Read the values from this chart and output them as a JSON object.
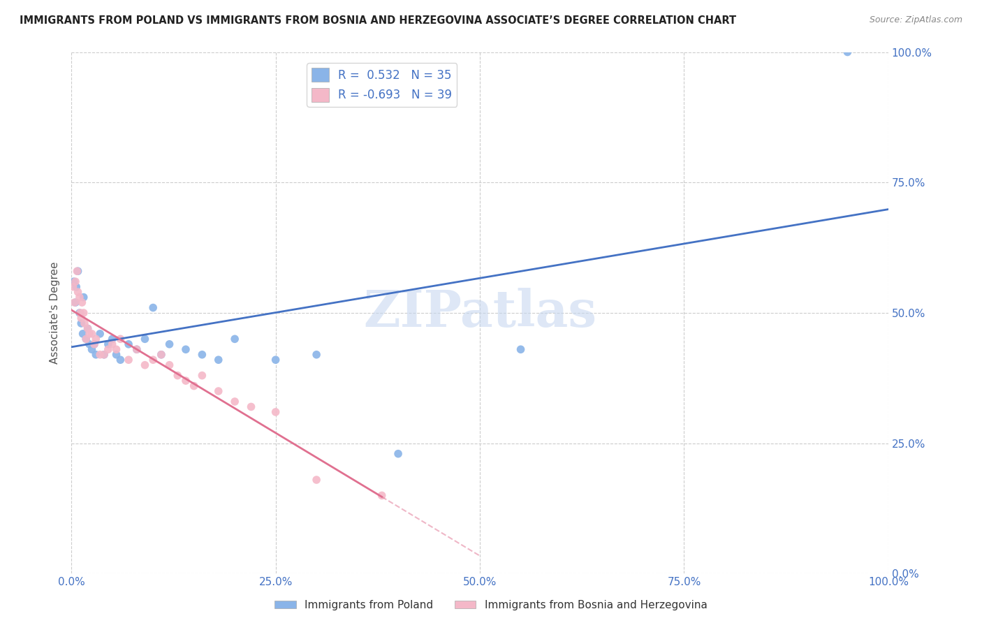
{
  "title": "IMMIGRANTS FROM POLAND VS IMMIGRANTS FROM BOSNIA AND HERZEGOVINA ASSOCIATE’S DEGREE CORRELATION CHART",
  "source": "Source: ZipAtlas.com",
  "ylabel": "Associate's Degree",
  "poland_R": 0.532,
  "poland_N": 35,
  "bosnia_R": -0.693,
  "bosnia_N": 39,
  "poland_color": "#8ab4e8",
  "bosnia_color": "#f4b8c8",
  "poland_line_color": "#4472c4",
  "bosnia_line_color": "#e07090",
  "watermark_text": "ZIPatlas",
  "watermark_color": "#c8d8f0",
  "background_color": "#ffffff",
  "grid_color": "#cccccc",
  "tick_color": "#4472c4",
  "title_color": "#222222",
  "legend_edge_color": "#cccccc",
  "xlim": [
    0,
    100
  ],
  "ylim": [
    0,
    100
  ],
  "x_ticks": [
    0,
    25,
    50,
    75,
    100
  ],
  "y_ticks": [
    0,
    25,
    50,
    75,
    100
  ],
  "poland_x": [
    0.3,
    0.5,
    0.6,
    0.8,
    1.0,
    1.2,
    1.4,
    1.5,
    1.8,
    2.0,
    2.2,
    2.5,
    2.8,
    3.0,
    3.5,
    4.0,
    4.5,
    5.0,
    5.5,
    6.0,
    7.0,
    8.0,
    9.0,
    10.0,
    11.0,
    12.0,
    14.0,
    16.0,
    18.0,
    20.0,
    25.0,
    30.0,
    40.0,
    55.0,
    95.0
  ],
  "poland_y": [
    56.0,
    52.0,
    55.0,
    58.0,
    50.0,
    48.0,
    46.0,
    53.0,
    45.0,
    47.0,
    44.0,
    43.0,
    44.0,
    42.0,
    46.0,
    42.0,
    44.0,
    45.0,
    42.0,
    41.0,
    44.0,
    43.0,
    45.0,
    51.0,
    42.0,
    44.0,
    43.0,
    42.0,
    41.0,
    45.0,
    41.0,
    42.0,
    23.0,
    43.0,
    100.0
  ],
  "bosnia_x": [
    0.2,
    0.4,
    0.5,
    0.7,
    0.8,
    1.0,
    1.1,
    1.2,
    1.3,
    1.5,
    1.6,
    1.8,
    2.0,
    2.2,
    2.5,
    2.8,
    3.0,
    3.5,
    4.0,
    4.5,
    5.0,
    5.5,
    6.0,
    7.0,
    8.0,
    9.0,
    10.0,
    11.0,
    12.0,
    13.0,
    14.0,
    15.0,
    16.0,
    18.0,
    20.0,
    22.0,
    25.0,
    30.0,
    38.0
  ],
  "bosnia_y": [
    55.0,
    52.0,
    56.0,
    58.0,
    54.0,
    53.0,
    50.0,
    49.0,
    52.0,
    50.0,
    48.0,
    45.0,
    47.0,
    46.0,
    46.0,
    44.0,
    45.0,
    42.0,
    42.0,
    43.0,
    44.0,
    43.0,
    45.0,
    41.0,
    43.0,
    40.0,
    41.0,
    42.0,
    40.0,
    38.0,
    37.0,
    36.0,
    38.0,
    35.0,
    33.0,
    32.0,
    31.0,
    18.0,
    15.0
  ],
  "bottom_legend_labels": [
    "Immigrants from Poland",
    "Immigrants from Bosnia and Herzegovina"
  ]
}
